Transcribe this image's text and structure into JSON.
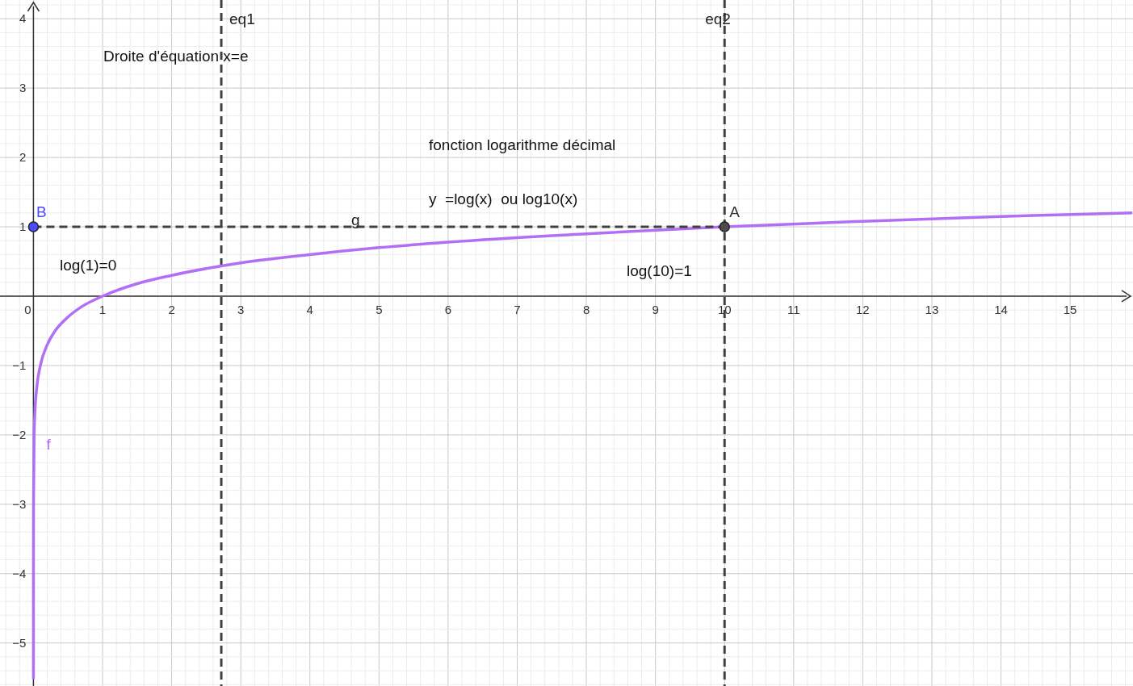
{
  "chart_data": {
    "type": "line",
    "xlim": [
      -0.484,
      15.91
    ],
    "ylim": [
      -5.62,
      4.27
    ],
    "xticks": [
      0,
      1,
      2,
      3,
      4,
      5,
      6,
      7,
      8,
      9,
      10,
      11,
      12,
      13,
      14,
      15
    ],
    "yticks": [
      {
        "value": -5,
        "label": "−5"
      },
      {
        "value": -4,
        "label": "−4"
      },
      {
        "value": -3,
        "label": "−3"
      },
      {
        "value": -2,
        "label": "−2"
      },
      {
        "value": -1,
        "label": "−1"
      },
      1,
      2,
      3,
      4
    ],
    "grid": true,
    "series": [
      {
        "name": "f",
        "color": "#b26ff5",
        "x": [
          3e-06,
          0.0001,
          0.001,
          0.01,
          0.02,
          0.05,
          0.1,
          0.2,
          0.3,
          0.5,
          0.7,
          1,
          1.5,
          2,
          3,
          4,
          5,
          6,
          8,
          10,
          12,
          14,
          15.9
        ],
        "values": [
          -5.52,
          -4,
          -3,
          -2,
          -1.7,
          -1.3,
          -1,
          -0.7,
          -0.52,
          -0.3,
          -0.15,
          0,
          0.18,
          0.3,
          0.48,
          0.6,
          0.7,
          0.78,
          0.9,
          1,
          1.08,
          1.15,
          1.2
        ]
      },
      {
        "name": "g",
        "line_style": "dashed",
        "color": "#404040",
        "x": [
          0,
          10
        ],
        "values": [
          1,
          1
        ]
      },
      {
        "name": "A",
        "type": "scatter",
        "marker": "circle",
        "color": "#4d4d4d",
        "x": [
          10
        ],
        "values": [
          1
        ]
      },
      {
        "name": "B",
        "type": "scatter",
        "marker": "circle",
        "color": "#4a4aff",
        "x": [
          0
        ],
        "values": [
          1
        ]
      }
    ],
    "ref_lines": [
      {
        "axis": "x",
        "value": 2.718,
        "label": "eq1",
        "line_style": "dashed",
        "color": "#404040"
      },
      {
        "axis": "x",
        "value": 10,
        "label": "eq2",
        "line_style": "dashed",
        "color": "#404040"
      }
    ],
    "annotations": [
      "Droite d'équation x=e",
      "fonction logarithme décimal",
      "y  =log(x)  ou log10(x)",
      "log(1)=0",
      "log(10)=1"
    ]
  }
}
